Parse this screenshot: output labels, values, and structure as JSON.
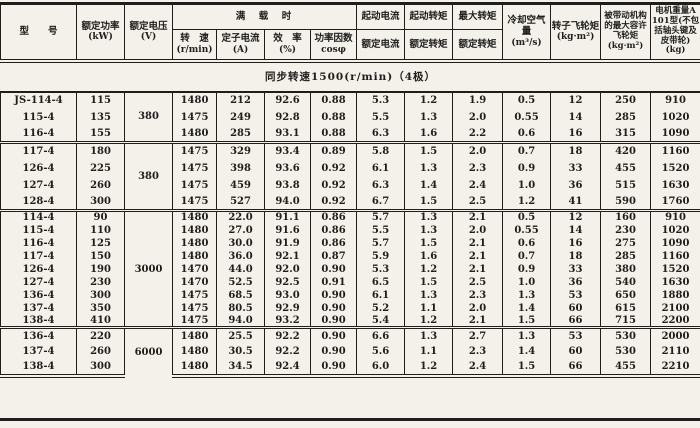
{
  "colors": {
    "paper": "#f3f1ea",
    "ink": "#1f1e1c"
  },
  "table": {
    "section_title": "同步转速1500(r/min)（4极）",
    "headers": {
      "model": "型　　号",
      "rated_power": {
        "l1": "额定功率",
        "l2": "(kW)"
      },
      "rated_voltage": {
        "l1": "额定电压",
        "l2": "(V)"
      },
      "full_load": "满　载　时",
      "speed": {
        "l1": "转　速",
        "l2": "(r/min)"
      },
      "stator_current": {
        "l1": "定子电流",
        "l2": "(A)"
      },
      "efficiency": {
        "l1": "效　率",
        "l2": "(%)"
      },
      "power_factor": {
        "l1": "功率因数",
        "l2": "cosφ"
      },
      "start_current": {
        "num": "起动电流",
        "den": "额定电流"
      },
      "start_torque": {
        "num": "起动转矩",
        "den": "额定转矩"
      },
      "max_torque": {
        "num": "最大转矩",
        "den": "额定转矩"
      },
      "cooling_air": {
        "l1": "冷却空气量",
        "l2": "(m³/s)"
      },
      "rotor_flywheel": {
        "l1": "转子飞轮矩",
        "l2": "(kg·m²)"
      },
      "driven_flywheel": {
        "l1": "被带动机构",
        "l2": "的最大容许",
        "l3": "飞轮矩",
        "l4": "(kg·m²)"
      },
      "motor_weight": {
        "l1": "电机重量A",
        "l2": "101型(不包",
        "l3": "括轴头键及",
        "l4": "皮带轮)",
        "l5": "(kg)"
      }
    },
    "groups": [
      {
        "voltage": "380",
        "rows": [
          [
            "JS-114-4",
            "115",
            "1480",
            "212",
            "92.6",
            "0.88",
            "5.3",
            "1.2",
            "1.9",
            "0.5",
            "12",
            "250",
            "910"
          ],
          [
            "115-4",
            "135",
            "1475",
            "249",
            "92.8",
            "0.88",
            "5.5",
            "1.3",
            "2.0",
            "0.55",
            "14",
            "285",
            "1020"
          ],
          [
            "116-4",
            "155",
            "1480",
            "285",
            "93.1",
            "0.88",
            "6.3",
            "1.6",
            "2.2",
            "0.6",
            "16",
            "315",
            "1090"
          ]
        ]
      },
      {
        "voltage": "380",
        "rows": [
          [
            "117-4",
            "180",
            "1475",
            "329",
            "93.4",
            "0.89",
            "5.8",
            "1.5",
            "2.0",
            "0.7",
            "18",
            "420",
            "1160"
          ],
          [
            "126-4",
            "225",
            "1475",
            "398",
            "93.6",
            "0.92",
            "6.1",
            "1.3",
            "2.3",
            "0.9",
            "33",
            "455",
            "1520"
          ],
          [
            "127-4",
            "260",
            "1475",
            "459",
            "93.8",
            "0.92",
            "6.3",
            "1.4",
            "2.4",
            "1.0",
            "36",
            "515",
            "1630"
          ],
          [
            "128-4",
            "300",
            "1475",
            "527",
            "94.0",
            "0.92",
            "6.7",
            "1.5",
            "2.5",
            "1.2",
            "41",
            "590",
            "1760"
          ]
        ]
      },
      {
        "voltage": "3000",
        "rows": [
          [
            "114-4",
            "90",
            "1480",
            "22.0",
            "91.1",
            "0.86",
            "5.7",
            "1.3",
            "2.1",
            "0.5",
            "12",
            "160",
            "910"
          ],
          [
            "115-4",
            "110",
            "1480",
            "27.0",
            "91.6",
            "0.86",
            "5.5",
            "1.3",
            "2.0",
            "0.55",
            "14",
            "230",
            "1020"
          ],
          [
            "116-4",
            "125",
            "1480",
            "30.0",
            "91.9",
            "0.86",
            "5.7",
            "1.5",
            "2.1",
            "0.6",
            "16",
            "275",
            "1090"
          ],
          [
            "117-4",
            "150",
            "1480",
            "36.0",
            "92.1",
            "0.87",
            "5.9",
            "1.6",
            "2.1",
            "0.7",
            "18",
            "285",
            "1160"
          ],
          [
            "126-4",
            "190",
            "1470",
            "44.0",
            "92.0",
            "0.90",
            "5.3",
            "1.2",
            "2.1",
            "0.9",
            "33",
            "380",
            "1520"
          ],
          [
            "127-4",
            "230",
            "1470",
            "52.5",
            "92.5",
            "0.91",
            "6.5",
            "1.5",
            "2.5",
            "1.0",
            "36",
            "540",
            "1630"
          ],
          [
            "136-4",
            "300",
            "1475",
            "68.5",
            "93.0",
            "0.90",
            "6.1",
            "1.3",
            "2.3",
            "1.3",
            "53",
            "650",
            "1880"
          ],
          [
            "137-4",
            "350",
            "1475",
            "80.5",
            "92.9",
            "0.90",
            "5.2",
            "1.1",
            "2.0",
            "1.4",
            "60",
            "615",
            "2100"
          ],
          [
            "138-4",
            "410",
            "1475",
            "94.0",
            "93.2",
            "0.90",
            "5.4",
            "1.2",
            "2.1",
            "1.5",
            "66",
            "715",
            "2200"
          ]
        ]
      },
      {
        "voltage": "6000",
        "rows": [
          [
            "136-4",
            "220",
            "1480",
            "25.5",
            "92.2",
            "0.90",
            "6.6",
            "1.3",
            "2.7",
            "1.3",
            "53",
            "530",
            "2000"
          ],
          [
            "137-4",
            "260",
            "1480",
            "30.5",
            "92.2",
            "0.90",
            "5.6",
            "1.1",
            "2.3",
            "1.4",
            "60",
            "530",
            "2110"
          ],
          [
            "138-4",
            "300",
            "1480",
            "34.5",
            "92.4",
            "0.90",
            "6.0",
            "1.2",
            "2.4",
            "1.5",
            "66",
            "455",
            "2210"
          ]
        ]
      }
    ]
  }
}
